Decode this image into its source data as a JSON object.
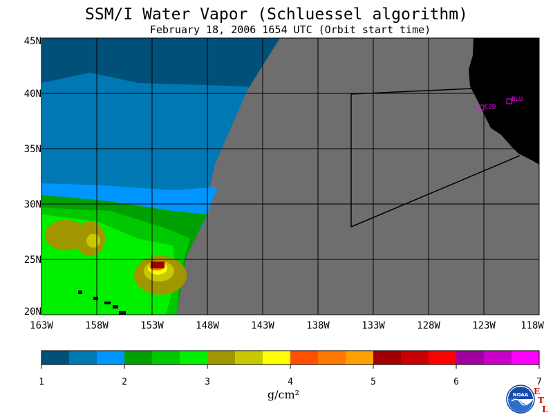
{
  "title": "SSM/I Water Vapor (Schluessel algorithm)",
  "subtitle": "February 18, 2006  1654 UTC  (Orbit start time)",
  "map": {
    "lat_labels": [
      "45N",
      "40N",
      "35N",
      "30N",
      "25N",
      "20N"
    ],
    "lon_labels": [
      "163W",
      "158W",
      "153W",
      "148W",
      "143W",
      "138W",
      "133W",
      "128W",
      "123W",
      "118W"
    ],
    "lat_range": [
      20,
      45
    ],
    "lon_range": [
      -163,
      -118
    ],
    "no_data_color": "#6e6e6e",
    "land_color": "#000000",
    "stations": [
      {
        "code": "CZD",
        "lat": 38.6,
        "lon": -123.2
      },
      {
        "code": "BLU",
        "lat": 39.3,
        "lon": -120.7
      }
    ]
  },
  "colorbar": {
    "ticks": [
      "1",
      "2",
      "3",
      "4",
      "5",
      "6",
      "7"
    ],
    "units": "g/cm²",
    "colors": [
      "#00507a",
      "#0078b4",
      "#0096ff",
      "#00a000",
      "#00c800",
      "#00f000",
      "#a09600",
      "#c8c800",
      "#ffff00",
      "#ff5000",
      "#ff7800",
      "#ffa000",
      "#a00000",
      "#c80000",
      "#ff0000",
      "#a000a0",
      "#c800c8",
      "#ff00ff"
    ]
  },
  "logo": {
    "text": "NOAA",
    "etl_text": [
      "E",
      "T",
      "L"
    ]
  }
}
